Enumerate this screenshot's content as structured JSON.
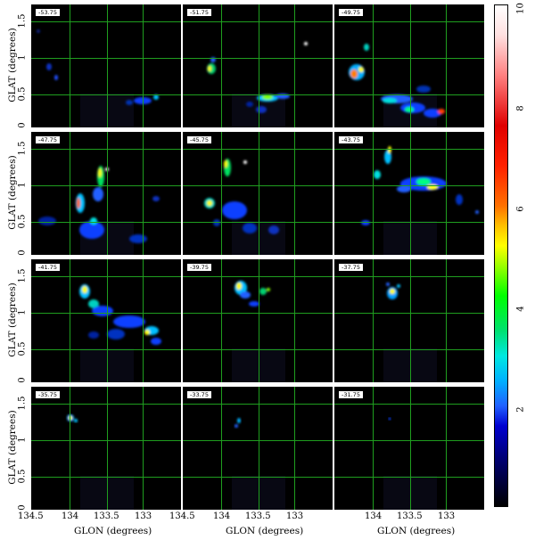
{
  "panels": [
    {
      "velocity": "-53.75"
    },
    {
      "velocity": "-51.75"
    },
    {
      "velocity": "-49.75"
    },
    {
      "velocity": "-47.75"
    },
    {
      "velocity": "-45.75"
    },
    {
      "velocity": "-43.75"
    },
    {
      "velocity": "-41.75"
    },
    {
      "velocity": "-39.75"
    },
    {
      "velocity": "-37.75"
    },
    {
      "velocity": "-35.75"
    },
    {
      "velocity": "-33.75"
    },
    {
      "velocity": "-31.75"
    }
  ],
  "axes": {
    "y_label": "GLAT (degrees)",
    "x_label": "GLON (degrees)",
    "y_ticks": [
      "1.5",
      "1",
      "0.5",
      "0"
    ],
    "x_ticks": [
      "134.5",
      "134",
      "133.5",
      "133"
    ],
    "x_ticks_last": [
      "134",
      "133.5",
      "133"
    ]
  },
  "colorbar": {
    "ticks": [
      "10",
      "8",
      "6",
      "4",
      "2"
    ],
    "range": [
      0,
      10
    ]
  },
  "colors": {
    "grid": "#1f9e1f",
    "background": "#000000"
  }
}
